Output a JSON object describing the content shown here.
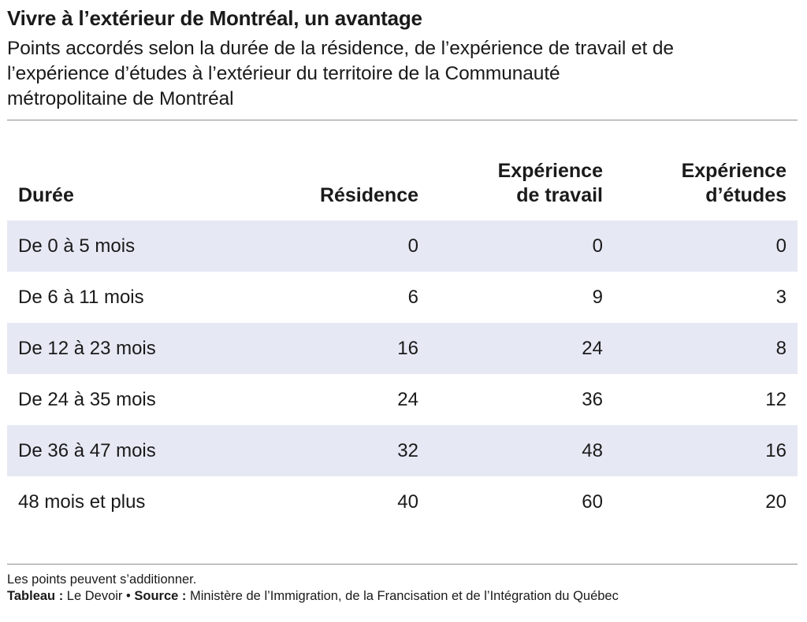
{
  "header": {
    "title": "Vivre à l’extérieur de Montréal, un avantage",
    "subtitle_lines": [
      "Points accordés selon la durée de la résidence, de l’expérience de travail et de",
      "l’expérience d’études à l’extérieur du territoire de la Communauté",
      "métropolitaine de Montréal"
    ]
  },
  "table": {
    "columns": {
      "duration": "Durée",
      "residence": "Résidence",
      "work_line1": "Expérience",
      "work_line2": "de travail",
      "study_line1": "Expérience",
      "study_line2": "d’études"
    },
    "rows": [
      {
        "duration": "De 0 à 5 mois",
        "residence": "0",
        "work": "0",
        "study": "0"
      },
      {
        "duration": "De 6 à 11 mois",
        "residence": "6",
        "work": "9",
        "study": "3"
      },
      {
        "duration": "De 12 à 23 mois",
        "residence": "16",
        "work": "24",
        "study": "8"
      },
      {
        "duration": "De 24 à 35 mois",
        "residence": "24",
        "work": "36",
        "study": "12"
      },
      {
        "duration": "De 36 à 47 mois",
        "residence": "32",
        "work": "48",
        "study": "16"
      },
      {
        "duration": "48 mois et plus",
        "residence": "40",
        "work": "60",
        "study": "20"
      }
    ]
  },
  "footer": {
    "note": "Les points peuvent s’additionner.",
    "credit_label": "Tableau :",
    "credit_value": " Le Devoir ",
    "separator": "•",
    "source_label": " Source :",
    "source_value": " Ministère de l’Immigration, de la Francisation et de l’Intégration du Québec"
  },
  "colors": {
    "stripe": "#e6e9f4",
    "text": "#1a1a1a",
    "rule": "#8c8c8c"
  },
  "chart_data": {
    "type": "table",
    "title": "Vivre à l’extérieur de Montréal, un avantage",
    "subtitle": "Points accordés selon la durée de la résidence, de l’expérience de travail et de l’expérience d’études à l’extérieur du territoire de la Communauté métropolitaine de Montréal",
    "columns": [
      "Durée",
      "Résidence",
      "Expérience de travail",
      "Expérience d’études"
    ],
    "rows": [
      [
        "De 0 à 5 mois",
        0,
        0,
        0
      ],
      [
        "De 6 à 11 mois",
        6,
        9,
        3
      ],
      [
        "De 12 à 23 mois",
        16,
        24,
        8
      ],
      [
        "De 24 à 35 mois",
        24,
        36,
        12
      ],
      [
        "De 36 à 47 mois",
        32,
        48,
        16
      ],
      [
        "48 mois et plus",
        40,
        60,
        20
      ]
    ]
  }
}
